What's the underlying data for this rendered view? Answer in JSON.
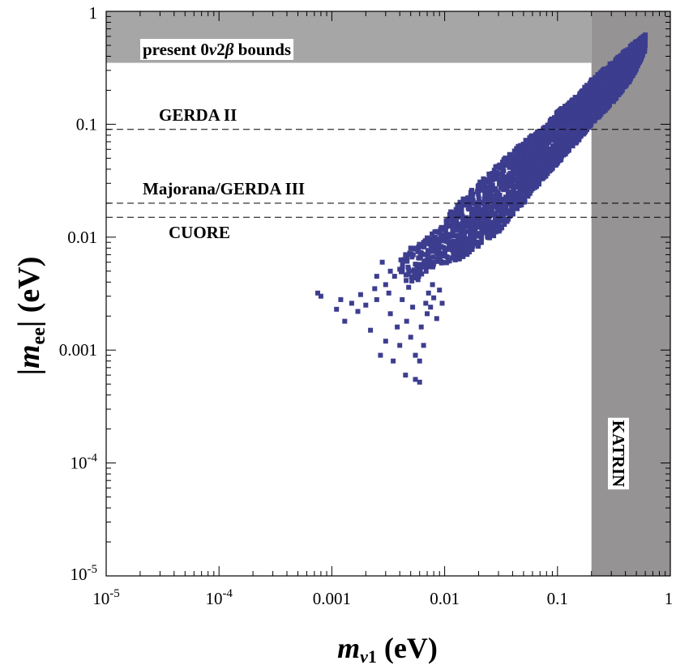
{
  "chart_data": {
    "type": "scatter",
    "title": "",
    "xlabel": "m_ν1 (eV)",
    "ylabel": "|m_ee| (eV)",
    "xscale": "log",
    "yscale": "log",
    "xlim": [
      1e-05,
      1
    ],
    "ylim": [
      1e-05,
      1
    ],
    "x_ticks": [
      {
        "value": 1e-05,
        "base": "10",
        "exp": "-5"
      },
      {
        "value": 0.0001,
        "base": "10",
        "exp": "-4"
      },
      {
        "value": 0.001,
        "label": "0.001"
      },
      {
        "value": 0.01,
        "label": "0.01"
      },
      {
        "value": 0.1,
        "label": "0.1"
      },
      {
        "value": 1,
        "label": "1"
      }
    ],
    "y_ticks": [
      {
        "value": 1e-05,
        "base": "10",
        "exp": "-5"
      },
      {
        "value": 0.0001,
        "base": "10",
        "exp": "-4"
      },
      {
        "value": 0.001,
        "label": "0.001"
      },
      {
        "value": 0.01,
        "label": "0.01"
      },
      {
        "value": 0.1,
        "label": "0.1"
      },
      {
        "value": 1,
        "label": "1"
      }
    ],
    "regions": [
      {
        "name": "present 0ν2β bounds",
        "label_main": "present 0",
        "label_italic": "ν",
        "label_two": "2",
        "label_beta": "β",
        "label_end": " bounds",
        "x_range": [
          1e-05,
          0.2
        ],
        "y_range": [
          0.35,
          1
        ],
        "color": "#a6a6a6"
      },
      {
        "name": "KATRIN",
        "label": "KATRIN",
        "x_range": [
          0.2,
          1
        ],
        "y_range": [
          1e-05,
          1
        ],
        "color": "#959394"
      }
    ],
    "reference_lines": [
      {
        "label": "GERDA II",
        "y": 0.09
      },
      {
        "label": "Majorana/GERDA III",
        "y": 0.02
      },
      {
        "label": "CUORE",
        "y": 0.015
      }
    ],
    "series": [
      {
        "name": "scan points",
        "color": "#3d3d8f",
        "band": [
          {
            "x": 0.004,
            "lo": 0.0035,
            "hi": 0.0065
          },
          {
            "x": 0.006,
            "lo": 0.0045,
            "hi": 0.009
          },
          {
            "x": 0.008,
            "lo": 0.0055,
            "hi": 0.011
          },
          {
            "x": 0.012,
            "lo": 0.006,
            "hi": 0.018
          },
          {
            "x": 0.02,
            "lo": 0.008,
            "hi": 0.03
          },
          {
            "x": 0.03,
            "lo": 0.011,
            "hi": 0.045
          },
          {
            "x": 0.05,
            "lo": 0.02,
            "hi": 0.07
          },
          {
            "x": 0.08,
            "lo": 0.035,
            "hi": 0.1
          },
          {
            "x": 0.1,
            "lo": 0.045,
            "hi": 0.13
          },
          {
            "x": 0.15,
            "lo": 0.07,
            "hi": 0.18
          },
          {
            "x": 0.2,
            "lo": 0.1,
            "hi": 0.25
          },
          {
            "x": 0.3,
            "lo": 0.15,
            "hi": 0.35
          },
          {
            "x": 0.45,
            "lo": 0.25,
            "hi": 0.5
          },
          {
            "x": 0.6,
            "lo": 0.45,
            "hi": 0.62
          }
        ],
        "scattered_points": [
          [
            0.00075,
            0.0032
          ],
          [
            0.0008,
            0.003
          ],
          [
            0.0011,
            0.0023
          ],
          [
            0.0012,
            0.0028
          ],
          [
            0.0013,
            0.0018
          ],
          [
            0.0015,
            0.0026
          ],
          [
            0.0017,
            0.0022
          ],
          [
            0.0018,
            0.0031
          ],
          [
            0.002,
            0.0025
          ],
          [
            0.0022,
            0.0015
          ],
          [
            0.0024,
            0.0035
          ],
          [
            0.0025,
            0.0028
          ],
          [
            0.0027,
            0.0009
          ],
          [
            0.003,
            0.0012
          ],
          [
            0.003,
            0.0038
          ],
          [
            0.0033,
            0.0021
          ],
          [
            0.0035,
            0.0008
          ],
          [
            0.0036,
            0.0045
          ],
          [
            0.0038,
            0.0016
          ],
          [
            0.004,
            0.0011
          ],
          [
            0.004,
            0.0052
          ],
          [
            0.0042,
            0.0028
          ],
          [
            0.0045,
            0.0006
          ],
          [
            0.0046,
            0.0018
          ],
          [
            0.0048,
            0.0036
          ],
          [
            0.005,
            0.0013
          ],
          [
            0.0052,
            0.0024
          ],
          [
            0.0055,
            0.0009
          ],
          [
            0.0055,
            0.00055
          ],
          [
            0.006,
            0.00052
          ],
          [
            0.006,
            0.0008
          ],
          [
            0.0062,
            0.0016
          ],
          [
            0.0065,
            0.0011
          ],
          [
            0.0068,
            0.0026
          ],
          [
            0.007,
            0.0021
          ],
          [
            0.0072,
            0.0032
          ],
          [
            0.0075,
            0.0024
          ],
          [
            0.008,
            0.0029
          ],
          [
            0.0085,
            0.0019
          ],
          [
            0.009,
            0.0034
          ],
          [
            0.0095,
            0.0026
          ],
          [
            0.0025,
            0.0045
          ],
          [
            0.0028,
            0.006
          ],
          [
            0.0033,
            0.005
          ],
          [
            0.0045,
            0.007
          ],
          [
            0.005,
            0.008
          ],
          [
            0.0065,
            0.009
          ],
          [
            0.0032,
            0.0032
          ],
          [
            0.0058,
            0.0042
          ],
          [
            0.0078,
            0.0038
          ]
        ]
      }
    ]
  }
}
